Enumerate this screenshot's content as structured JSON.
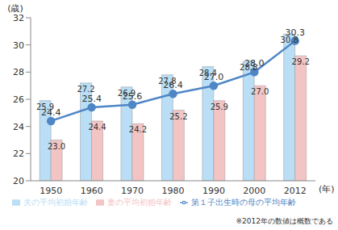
{
  "chart_data": {
    "type": "bar",
    "y_label": "(歳)",
    "x_label": "(年)",
    "annotations": [
      "※2012年の数値は概数である"
    ],
    "categories": [
      1950,
      1960,
      1970,
      1980,
      1990,
      2000,
      2012
    ],
    "series": [
      {
        "name": "夫の平均初婚年齢",
        "type": "bar",
        "color": "#b9def5",
        "values": [
          25.9,
          27.2,
          26.9,
          27.8,
          28.4,
          28.8,
          30.8
        ],
        "value_labels": [
          "25.9",
          "27.2",
          "26.9",
          "27.8",
          "28.4",
          "28.8",
          "30.8"
        ]
      },
      {
        "name": "妻の平均初婚年齢",
        "type": "bar",
        "color": "#f3c4c4",
        "values": [
          23.0,
          24.4,
          24.2,
          25.2,
          25.9,
          27.0,
          29.2
        ],
        "value_labels": [
          "23.0",
          "24.4",
          "24.2",
          "25.2",
          "25.9",
          "27.0",
          "29.2"
        ]
      },
      {
        "name": "第１子出生時の母の平均年齢",
        "type": "line",
        "color": "#4f86c6",
        "marker": "circle",
        "values": [
          24.4,
          25.4,
          25.6,
          26.4,
          27.0,
          28.0,
          30.3
        ],
        "value_labels": [
          "24.4",
          "25.4",
          "25.6",
          "26.4",
          "27.0",
          "28.0",
          "30.3"
        ]
      }
    ],
    "ylim": [
      20,
      32
    ],
    "yticks": [
      20,
      22,
      24,
      26,
      28,
      30,
      32
    ],
    "grid": false,
    "legend": "bottom",
    "data_labels": true
  }
}
